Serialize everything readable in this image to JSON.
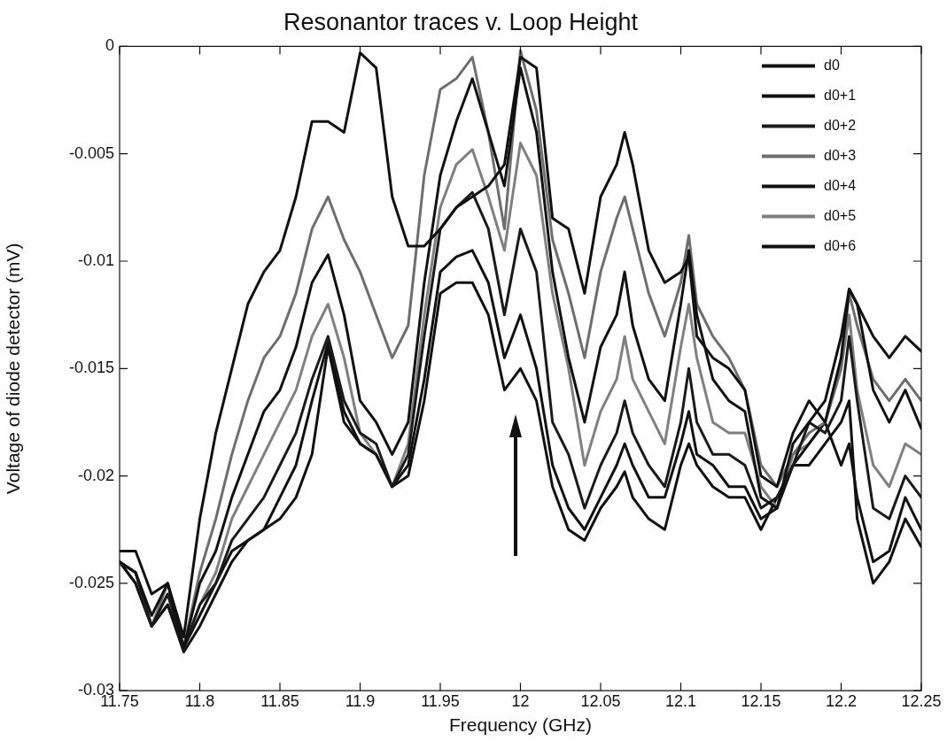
{
  "chart_data": {
    "type": "line",
    "title": "Resonantor traces v. Loop Height",
    "xlabel": "Frequency (GHz)",
    "ylabel": "Voltage of diode detector (mV)",
    "x": [
      11.75,
      11.76,
      11.77,
      11.78,
      11.79,
      11.8,
      11.81,
      11.82,
      11.83,
      11.84,
      11.85,
      11.86,
      11.87,
      11.88,
      11.89,
      11.9,
      11.91,
      11.92,
      11.93,
      11.94,
      11.95,
      11.96,
      11.97,
      11.98,
      11.99,
      12,
      12.01,
      12.02,
      12.03,
      12.04,
      12.05,
      12.06,
      12.065,
      12.07,
      12.08,
      12.09,
      12.1,
      12.105,
      12.11,
      12.12,
      12.13,
      12.14,
      12.15,
      12.16,
      12.17,
      12.18,
      12.19,
      12.2,
      12.205,
      12.21,
      12.22,
      12.23,
      12.24,
      12.25
    ],
    "series": [
      {
        "name": "d0",
        "color": "#111111",
        "values": [
          -0.0235,
          -0.0235,
          -0.0255,
          -0.025,
          -0.0275,
          -0.022,
          -0.018,
          -0.015,
          -0.012,
          -0.0105,
          -0.0095,
          -0.007,
          -0.0035,
          -0.0035,
          -0.004,
          -0.0003,
          -0.001,
          -0.007,
          -0.0093,
          -0.0093,
          -0.0085,
          -0.0075,
          -0.007,
          -0.0065,
          -0.0055,
          -0.0005,
          -0.001,
          -0.008,
          -0.0085,
          -0.0115,
          -0.007,
          -0.0055,
          -0.004,
          -0.0055,
          -0.0095,
          -0.011,
          -0.0105,
          -0.0098,
          -0.0135,
          -0.0145,
          -0.015,
          -0.016,
          -0.02,
          -0.0205,
          -0.018,
          -0.0165,
          -0.0175,
          -0.0145,
          -0.0113,
          -0.012,
          -0.0135,
          -0.0145,
          -0.0135,
          -0.0142
        ]
      },
      {
        "name": "d0+1",
        "color": "#111111",
        "values": [
          -0.024,
          -0.0245,
          -0.0265,
          -0.025,
          -0.028,
          -0.025,
          -0.0235,
          -0.021,
          -0.019,
          -0.017,
          -0.016,
          -0.014,
          -0.011,
          -0.0097,
          -0.0125,
          -0.0165,
          -0.0175,
          -0.019,
          -0.0175,
          -0.011,
          -0.006,
          -0.0035,
          -0.0015,
          -0.004,
          -0.0065,
          -0.001,
          -0.004,
          -0.0105,
          -0.0145,
          -0.0175,
          -0.014,
          -0.0125,
          -0.0105,
          -0.013,
          -0.0155,
          -0.0165,
          -0.012,
          -0.0095,
          -0.0125,
          -0.0155,
          -0.0165,
          -0.017,
          -0.021,
          -0.0215,
          -0.0185,
          -0.0175,
          -0.0165,
          -0.0135,
          -0.0113,
          -0.012,
          -0.016,
          -0.0175,
          -0.016,
          -0.0178
        ]
      },
      {
        "name": "d0+2",
        "color": "#1a1a1a",
        "values": [
          -0.024,
          -0.0245,
          -0.027,
          -0.0255,
          -0.028,
          -0.026,
          -0.025,
          -0.023,
          -0.022,
          -0.021,
          -0.0195,
          -0.018,
          -0.0155,
          -0.0135,
          -0.0165,
          -0.018,
          -0.0185,
          -0.0205,
          -0.019,
          -0.0135,
          -0.0085,
          -0.0075,
          -0.0068,
          -0.0085,
          -0.0125,
          -0.0085,
          -0.0105,
          -0.0175,
          -0.019,
          -0.0215,
          -0.0195,
          -0.018,
          -0.0165,
          -0.018,
          -0.0195,
          -0.0205,
          -0.0175,
          -0.015,
          -0.0175,
          -0.019,
          -0.019,
          -0.0195,
          -0.0215,
          -0.021,
          -0.0195,
          -0.0175,
          -0.018,
          -0.0165,
          -0.0135,
          -0.0165,
          -0.0215,
          -0.022,
          -0.02,
          -0.021
        ]
      },
      {
        "name": "d0+3",
        "color": "#6e6e6e",
        "values": [
          -0.024,
          -0.0245,
          -0.027,
          -0.025,
          -0.028,
          -0.0245,
          -0.022,
          -0.019,
          -0.0165,
          -0.0145,
          -0.0135,
          -0.0115,
          -0.0085,
          -0.007,
          -0.009,
          -0.0105,
          -0.0125,
          -0.0145,
          -0.013,
          -0.006,
          -0.002,
          -0.0015,
          -0.0005,
          -0.004,
          -0.0085,
          -0.0002,
          -0.003,
          -0.009,
          -0.0115,
          -0.0145,
          -0.0105,
          -0.008,
          -0.007,
          -0.0085,
          -0.0115,
          -0.0135,
          -0.011,
          -0.0088,
          -0.012,
          -0.0135,
          -0.0145,
          -0.016,
          -0.0195,
          -0.0205,
          -0.019,
          -0.018,
          -0.0175,
          -0.015,
          -0.0115,
          -0.013,
          -0.0155,
          -0.0165,
          -0.0155,
          -0.0165
        ]
      },
      {
        "name": "d0+4",
        "color": "#111111",
        "values": [
          -0.024,
          -0.025,
          -0.027,
          -0.026,
          -0.028,
          -0.0265,
          -0.025,
          -0.0235,
          -0.023,
          -0.0225,
          -0.021,
          -0.0195,
          -0.0165,
          -0.0138,
          -0.017,
          -0.0185,
          -0.019,
          -0.0205,
          -0.0195,
          -0.0155,
          -0.0105,
          -0.0098,
          -0.0095,
          -0.011,
          -0.0145,
          -0.0125,
          -0.015,
          -0.0195,
          -0.0215,
          -0.0225,
          -0.021,
          -0.0195,
          -0.0185,
          -0.0195,
          -0.021,
          -0.021,
          -0.0185,
          -0.017,
          -0.019,
          -0.0195,
          -0.0205,
          -0.0205,
          -0.022,
          -0.0215,
          -0.0195,
          -0.0185,
          -0.0175,
          -0.0195,
          -0.0185,
          -0.021,
          -0.024,
          -0.0235,
          -0.021,
          -0.0225
        ]
      },
      {
        "name": "d0+5",
        "color": "#808080",
        "values": [
          -0.024,
          -0.0245,
          -0.027,
          -0.0255,
          -0.028,
          -0.026,
          -0.0245,
          -0.022,
          -0.0205,
          -0.019,
          -0.0175,
          -0.016,
          -0.0135,
          -0.012,
          -0.0145,
          -0.018,
          -0.019,
          -0.0205,
          -0.0185,
          -0.0125,
          -0.0075,
          -0.0055,
          -0.0048,
          -0.007,
          -0.0095,
          -0.0045,
          -0.006,
          -0.0115,
          -0.015,
          -0.0195,
          -0.017,
          -0.0155,
          -0.0135,
          -0.0155,
          -0.017,
          -0.0185,
          -0.014,
          -0.012,
          -0.0145,
          -0.0175,
          -0.018,
          -0.018,
          -0.0205,
          -0.0215,
          -0.019,
          -0.0185,
          -0.0175,
          -0.015,
          -0.0125,
          -0.016,
          -0.0195,
          -0.0205,
          -0.0185,
          -0.019
        ]
      },
      {
        "name": "d0+6",
        "color": "#111111",
        "values": [
          -0.024,
          -0.025,
          -0.027,
          -0.026,
          -0.0282,
          -0.027,
          -0.0255,
          -0.024,
          -0.023,
          -0.0225,
          -0.022,
          -0.021,
          -0.019,
          -0.014,
          -0.0175,
          -0.0185,
          -0.019,
          -0.0205,
          -0.02,
          -0.0165,
          -0.0115,
          -0.011,
          -0.011,
          -0.0125,
          -0.016,
          -0.015,
          -0.0165,
          -0.0205,
          -0.0225,
          -0.023,
          -0.0215,
          -0.0205,
          -0.0198,
          -0.021,
          -0.022,
          -0.0225,
          -0.0195,
          -0.0185,
          -0.0195,
          -0.0205,
          -0.021,
          -0.021,
          -0.0225,
          -0.021,
          -0.0195,
          -0.0195,
          -0.0185,
          -0.0175,
          -0.0165,
          -0.022,
          -0.025,
          -0.024,
          -0.022,
          -0.0233
        ]
      }
    ],
    "xlim": [
      11.75,
      12.25
    ],
    "xticks": [
      11.75,
      11.8,
      11.85,
      11.9,
      11.95,
      12,
      12.05,
      12.1,
      12.15,
      12.2,
      12.25
    ],
    "ylim": [
      -0.03,
      0
    ],
    "yticks": [
      -0.03,
      -0.025,
      -0.02,
      -0.015,
      -0.01,
      -0.005,
      0
    ],
    "legend": "top right"
  }
}
